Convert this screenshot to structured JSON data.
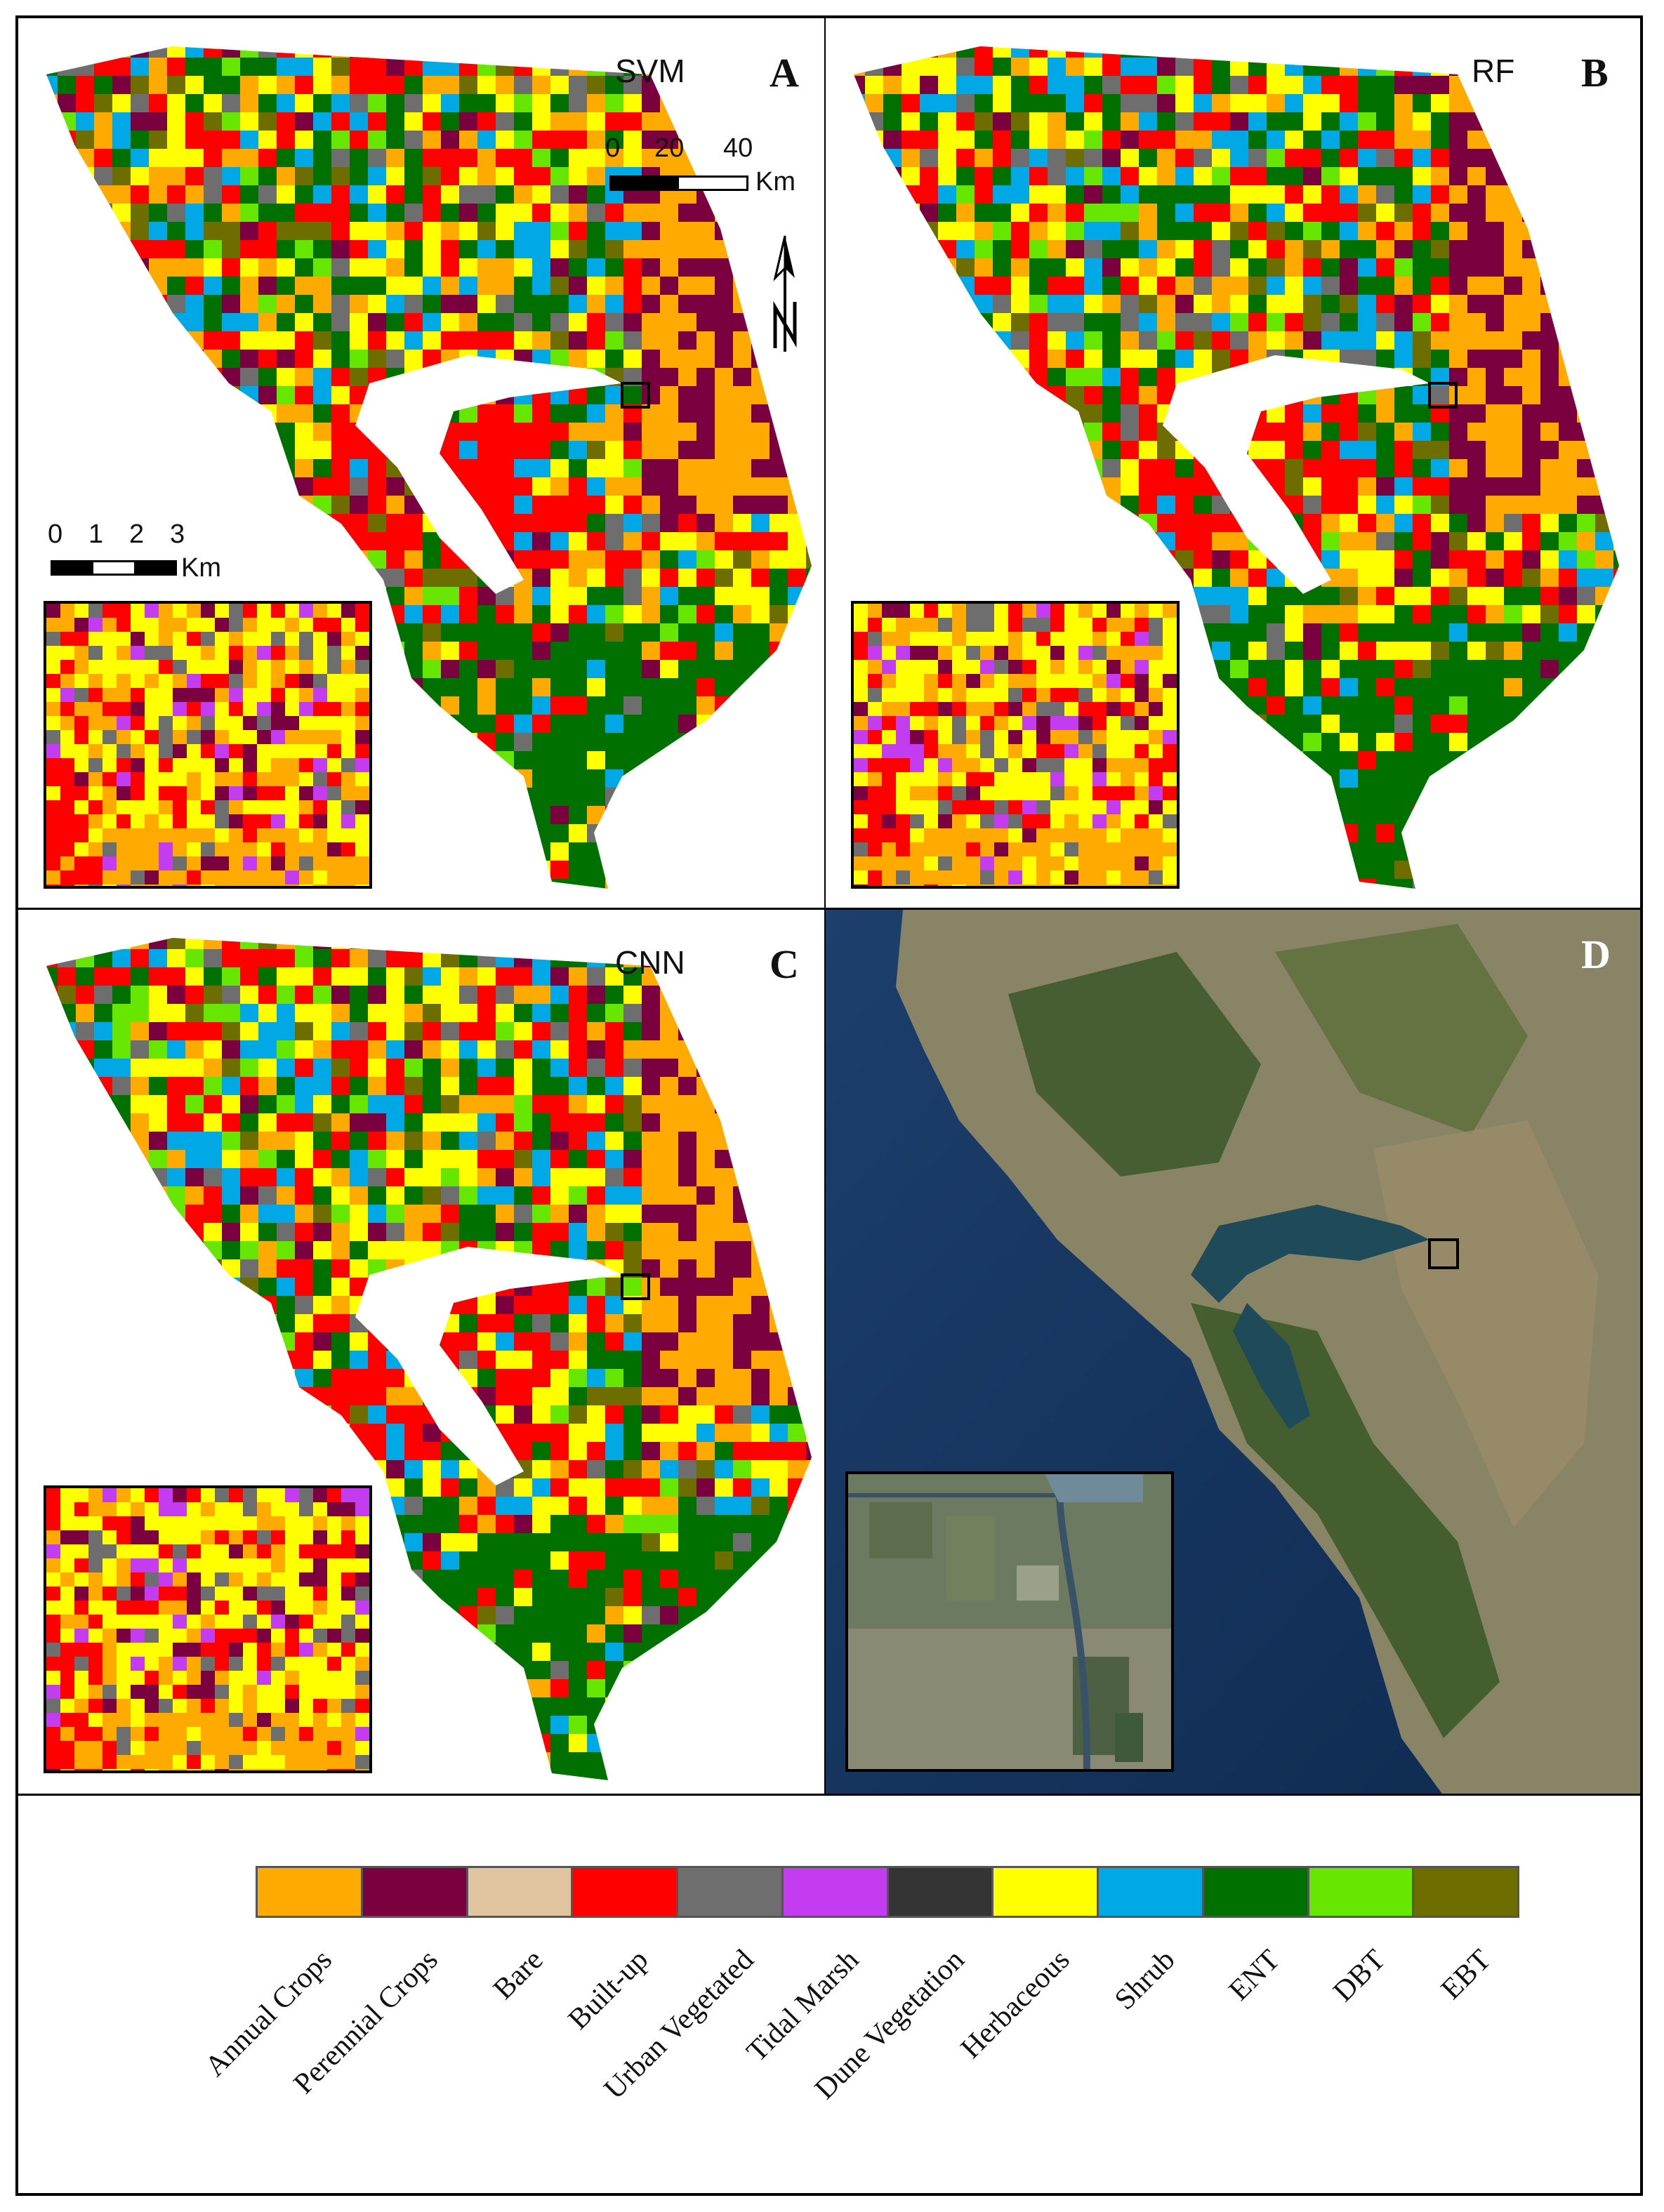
{
  "panels": {
    "a": {
      "method": "SVM",
      "letter": "A"
    },
    "b": {
      "method": "RF",
      "letter": "B"
    },
    "c": {
      "method": "CNN",
      "letter": "C"
    },
    "d": {
      "method": "",
      "letter": "D"
    }
  },
  "scale_large": {
    "ticks": [
      "0",
      "20",
      "40"
    ],
    "unit": "Km"
  },
  "scale_inset": {
    "ticks": [
      "0",
      "1",
      "2",
      "3"
    ],
    "unit": "Km"
  },
  "legend": {
    "classes": [
      {
        "label": "Annual Crops",
        "color": "#FFAA00"
      },
      {
        "label": "Perennial Crops",
        "color": "#7A0040"
      },
      {
        "label": "Bare",
        "color": "#E0C4A0"
      },
      {
        "label": "Built-up",
        "color": "#FF0000"
      },
      {
        "label": "Urban Vegetated",
        "color": "#6E6E6E"
      },
      {
        "label": "Tidal Marsh",
        "color": "#C43CF0"
      },
      {
        "label": "Dune Vegetation",
        "color": "#343434"
      },
      {
        "label": "Herbaceous",
        "color": "#FFFF00"
      },
      {
        "label": "Shrub",
        "color": "#00A8E6"
      },
      {
        "label": "ENT",
        "color": "#007000"
      },
      {
        "label": "DBT",
        "color": "#66E600"
      },
      {
        "label": "EBT",
        "color": "#6E6E00"
      }
    ]
  }
}
